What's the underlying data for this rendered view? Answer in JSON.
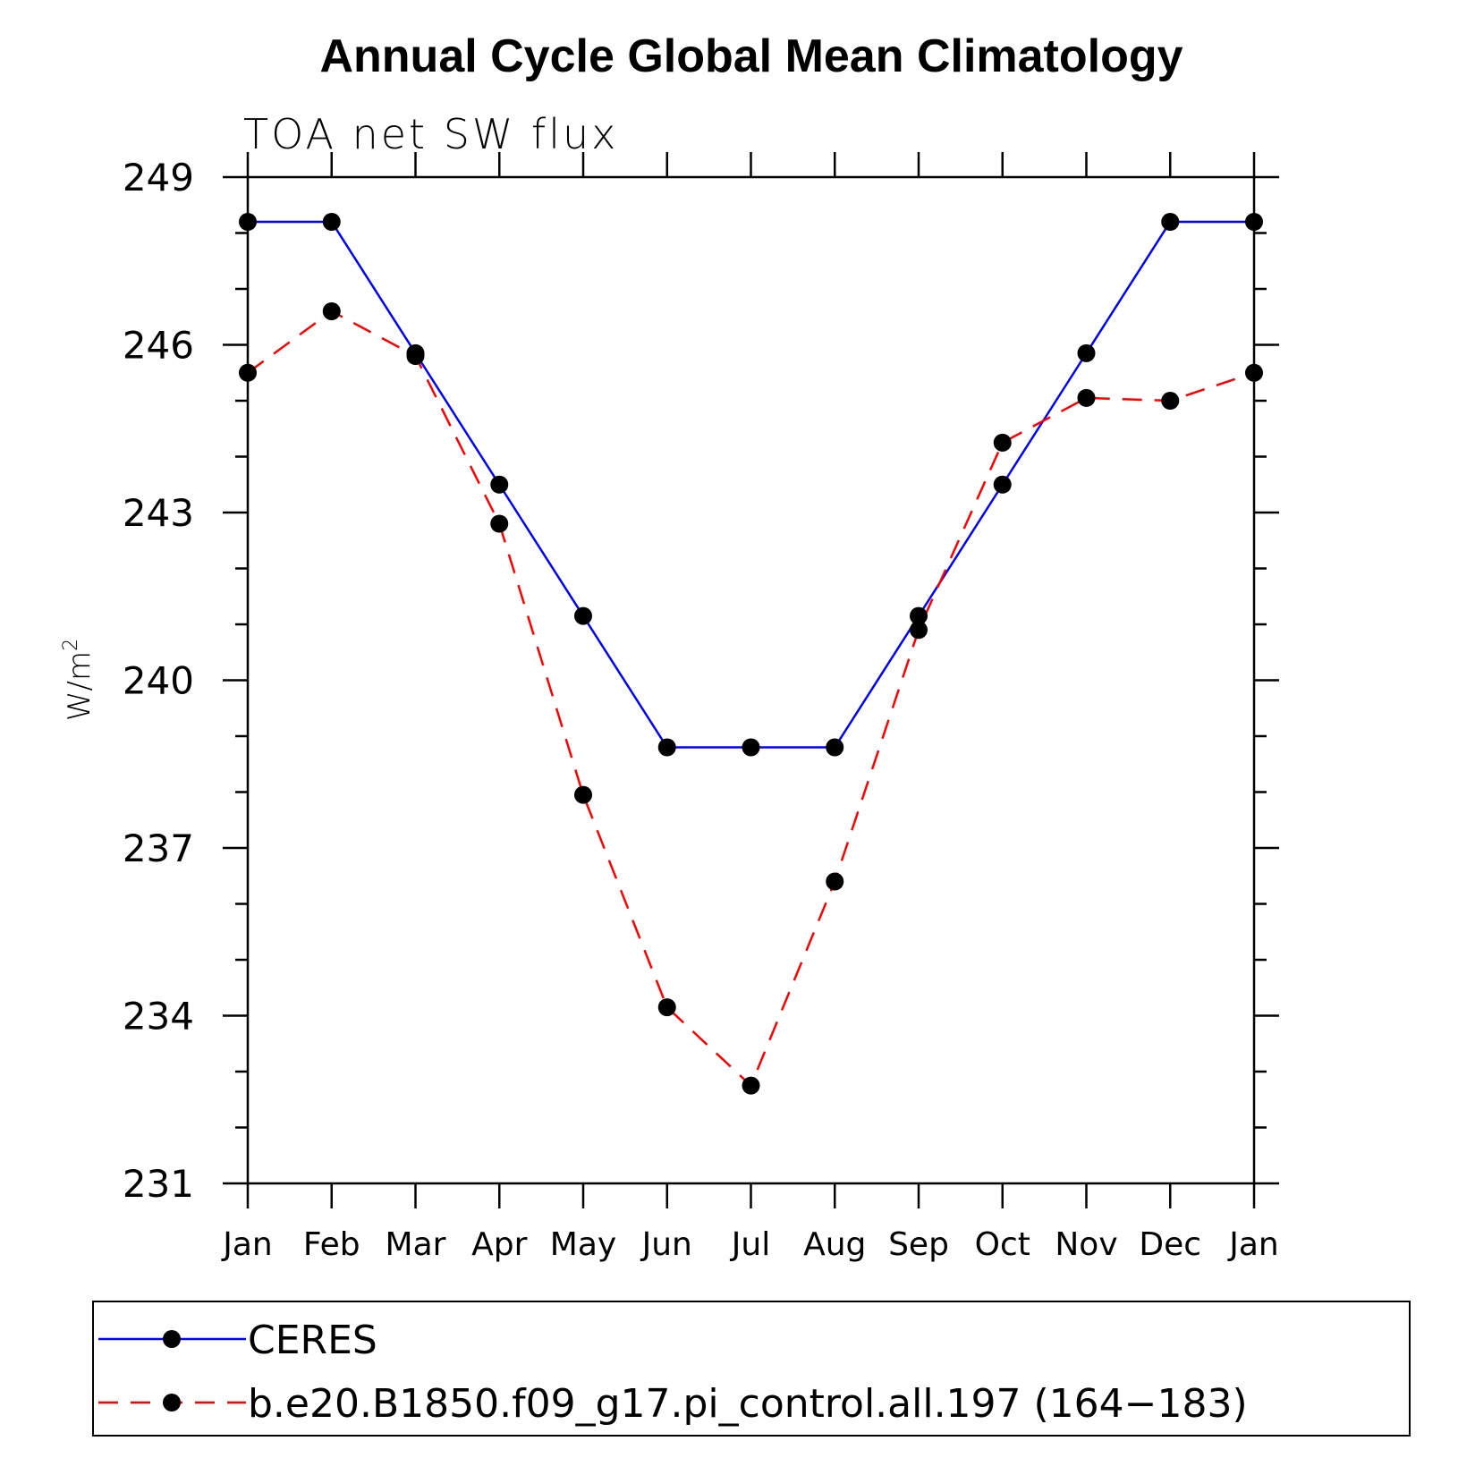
{
  "chart_data": {
    "type": "line",
    "title": "Annual Cycle Global Mean Climatology",
    "subtitle": "TOA net SW flux",
    "ylabel": "W/m",
    "ylabel_superscript": "2",
    "xlabel": "",
    "categories": [
      "Jan",
      "Feb",
      "Mar",
      "Apr",
      "May",
      "Jun",
      "Jul",
      "Aug",
      "Sep",
      "Oct",
      "Nov",
      "Dec",
      "Jan"
    ],
    "ylim": [
      231,
      249
    ],
    "yticks": [
      231,
      234,
      237,
      240,
      243,
      246,
      249
    ],
    "yticks_labels": [
      "231",
      "234",
      "237",
      "240",
      "243",
      "246",
      "249"
    ],
    "grid": false,
    "legend_position": "bottom",
    "series": [
      {
        "name": "CERES",
        "color": "#0000ff",
        "dash": "solid",
        "values": [
          248.2,
          248.2,
          245.85,
          243.5,
          241.15,
          238.8,
          238.8,
          238.8,
          241.15,
          243.5,
          245.85,
          248.2,
          248.2
        ]
      },
      {
        "name": "b.e20.B1850.f09_g17.pi_control.all.197 (164−183)",
        "color": "#ff0000",
        "dash": "dashed",
        "values": [
          245.5,
          246.6,
          245.8,
          242.8,
          237.95,
          234.15,
          232.75,
          236.4,
          240.9,
          244.25,
          245.05,
          245.0,
          245.5
        ]
      }
    ]
  }
}
